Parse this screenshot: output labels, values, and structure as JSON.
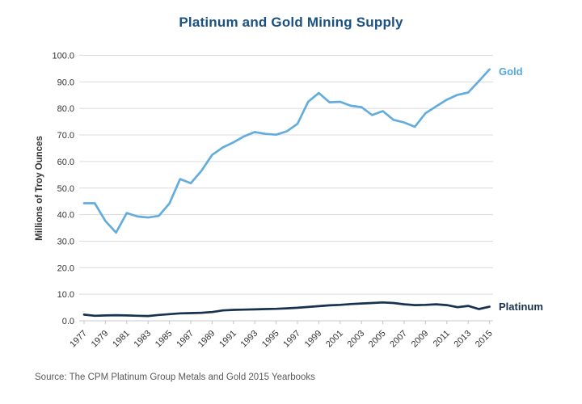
{
  "chart_data": {
    "type": "line",
    "title": "Platinum and Gold Mining Supply",
    "ylabel": "Millions of Troy Ounces",
    "xlabel": "",
    "ylim": [
      0,
      100
    ],
    "ytick_step": 10,
    "ytick_format": "one_decimal",
    "xtick_every_years": 2,
    "grid": "horizontal",
    "x": [
      1977,
      1978,
      1979,
      1980,
      1981,
      1982,
      1983,
      1984,
      1985,
      1986,
      1987,
      1988,
      1989,
      1990,
      1991,
      1992,
      1993,
      1994,
      1995,
      1996,
      1997,
      1998,
      1999,
      2000,
      2001,
      2002,
      2003,
      2004,
      2005,
      2006,
      2007,
      2008,
      2009,
      2010,
      2011,
      2012,
      2013,
      2014,
      2015
    ],
    "series": [
      {
        "name": "Gold",
        "color": "#63ACDE",
        "label_color": "#54A7DB",
        "values": [
          44.3,
          44.3,
          37.6,
          33.2,
          40.6,
          39.3,
          38.9,
          39.5,
          44.2,
          53.4,
          51.8,
          56.5,
          62.5,
          65.3,
          67.2,
          69.5,
          71.1,
          70.4,
          70.1,
          71.4,
          74.2,
          82.5,
          85.8,
          82.3,
          82.5,
          81.0,
          80.5,
          77.5,
          79.0,
          75.7,
          74.7,
          73.1,
          78.2,
          80.8,
          83.3,
          85.1,
          86.0,
          90.3,
          94.7
        ]
      },
      {
        "name": "Platinum",
        "color": "#16324F",
        "label_color": "#16324F",
        "values": [
          2.3,
          1.9,
          2.0,
          2.1,
          2.0,
          1.9,
          1.8,
          2.2,
          2.5,
          2.8,
          2.9,
          3.0,
          3.3,
          3.9,
          4.1,
          4.2,
          4.3,
          4.4,
          4.5,
          4.7,
          4.9,
          5.2,
          5.5,
          5.8,
          6.0,
          6.3,
          6.5,
          6.7,
          6.9,
          6.7,
          6.2,
          5.9,
          6.0,
          6.2,
          5.9,
          5.1,
          5.6,
          4.4,
          5.3
        ]
      }
    ],
    "legend_position": "right-of-line-ends"
  },
  "source_note": "Source: The CPM Platinum Group Metals and Gold 2015 Yearbooks",
  "colors": {
    "title_text": "#1B5180",
    "axis_text": "#333333",
    "gridline": "#DCDCDC",
    "baseline": "#C9C9C9",
    "tick_mark": "#C5C5C5",
    "source_text": "#595959"
  }
}
